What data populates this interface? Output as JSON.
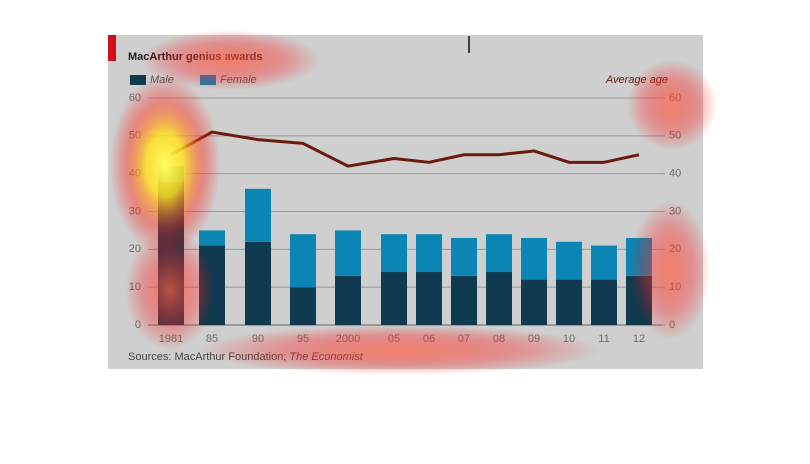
{
  "chart_data": {
    "type": "bar",
    "title": "MacArthur genius awards",
    "y2_label": "Average age",
    "source": "Sources: MacArthur Foundation;",
    "source_italic": "The Economist",
    "categories": [
      "1981",
      "85",
      "90",
      "95",
      "2000",
      "05",
      "06",
      "07",
      "08",
      "09",
      "10",
      "11",
      "12"
    ],
    "series": [
      {
        "name": "Male",
        "color": "#0f3a50",
        "values": [
          38,
          21,
          22,
          10,
          13,
          14,
          14,
          13,
          14,
          12,
          12,
          12,
          13
        ]
      },
      {
        "name": "Female",
        "color": "#0b86b4",
        "values": [
          4,
          4,
          14,
          14,
          12,
          10,
          10,
          10,
          10,
          11,
          10,
          9,
          10
        ]
      },
      {
        "name": "Average age",
        "type": "line",
        "axis": "y2",
        "color": "#6b1a0e",
        "values": [
          45,
          51,
          49,
          48,
          42,
          44,
          43,
          45,
          45,
          46,
          43,
          43,
          45
        ]
      }
    ],
    "ylim": [
      0,
      60
    ],
    "yticks": [
      0,
      10,
      20,
      30,
      40,
      50,
      60
    ],
    "y2lim": [
      0,
      60
    ],
    "y2ticks": [
      0,
      10,
      20,
      30,
      40,
      50,
      60
    ],
    "grid": true
  }
}
